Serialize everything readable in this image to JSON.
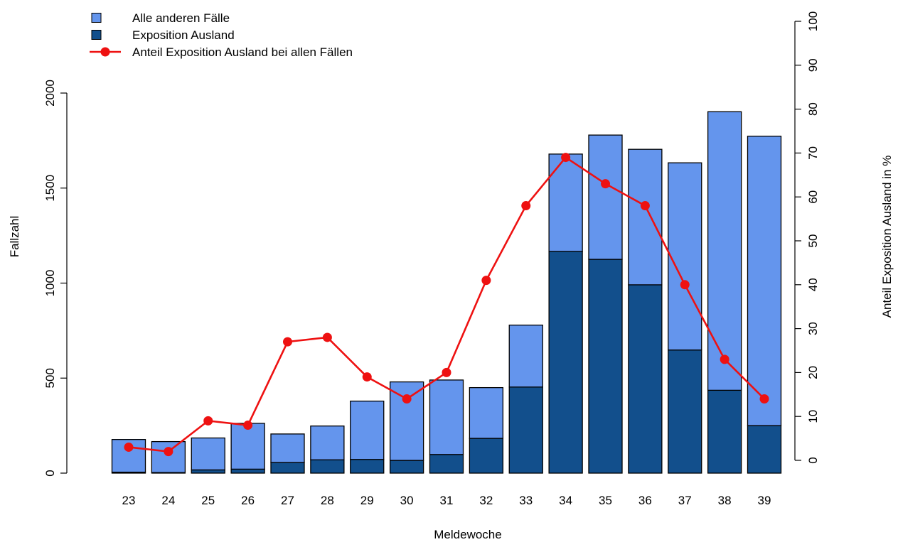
{
  "chart_data": {
    "type": "bar",
    "stacked": true,
    "xlabel": "Meldewoche",
    "ylabel": "Fallzahl",
    "y2label": "Anteil Exposition Ausland in %",
    "ylim": [
      0,
      2000
    ],
    "y2lim": [
      0,
      100
    ],
    "yticks": [
      0,
      500,
      1000,
      1500,
      2000
    ],
    "y2ticks": [
      0,
      10,
      20,
      30,
      40,
      50,
      60,
      70,
      80,
      90,
      100
    ],
    "categories": [
      "23",
      "24",
      "25",
      "26",
      "27",
      "28",
      "29",
      "30",
      "31",
      "32",
      "33",
      "34",
      "35",
      "36",
      "37",
      "38",
      "39"
    ],
    "series": [
      {
        "name": "Exposition Ausland",
        "color": "#124f8c",
        "values": [
          5,
          3,
          17,
          21,
          56,
          70,
          72,
          67,
          98,
          183,
          453,
          1167,
          1125,
          991,
          648,
          436,
          250
        ]
      },
      {
        "name": "Alle anderen Fälle",
        "color": "#6495ed",
        "values": [
          172,
          163,
          168,
          241,
          150,
          178,
          307,
          413,
          392,
          267,
          326,
          512,
          654,
          713,
          985,
          1466,
          1523
        ]
      }
    ],
    "line": {
      "name": "Anteil Exposition Ausland bei allen Fällen",
      "color": "#ee1111",
      "axis": "right",
      "values": [
        3,
        2,
        9,
        8,
        27,
        28,
        19,
        14,
        20,
        41,
        58,
        69,
        63,
        58,
        40,
        23,
        14
      ]
    },
    "legend": {
      "position": "top-left",
      "entries": [
        {
          "label": "Alle anderen Fälle",
          "kind": "box",
          "color": "#6495ed"
        },
        {
          "label": "Exposition Ausland",
          "kind": "box",
          "color": "#124f8c"
        },
        {
          "label": "Anteil Exposition Ausland bei allen Fällen",
          "kind": "line",
          "color": "#ee1111"
        }
      ]
    },
    "grid": false
  }
}
